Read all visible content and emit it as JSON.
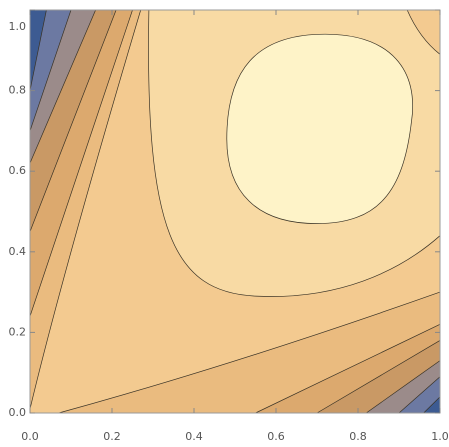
{
  "chart_data": {
    "type": "contour",
    "xlim": [
      0,
      1
    ],
    "ylim": [
      0,
      1
    ],
    "xticks": [
      {
        "value": 0,
        "label": "0.0"
      },
      0.2,
      0.4,
      0.6,
      0.8,
      {
        "value": 1,
        "label": "1.0"
      }
    ],
    "yticks": [
      {
        "value": 0,
        "label": "0.0"
      },
      0.2,
      0.4,
      0.6,
      0.8,
      {
        "value": 1,
        "label": "1.0"
      }
    ]
  }
}
